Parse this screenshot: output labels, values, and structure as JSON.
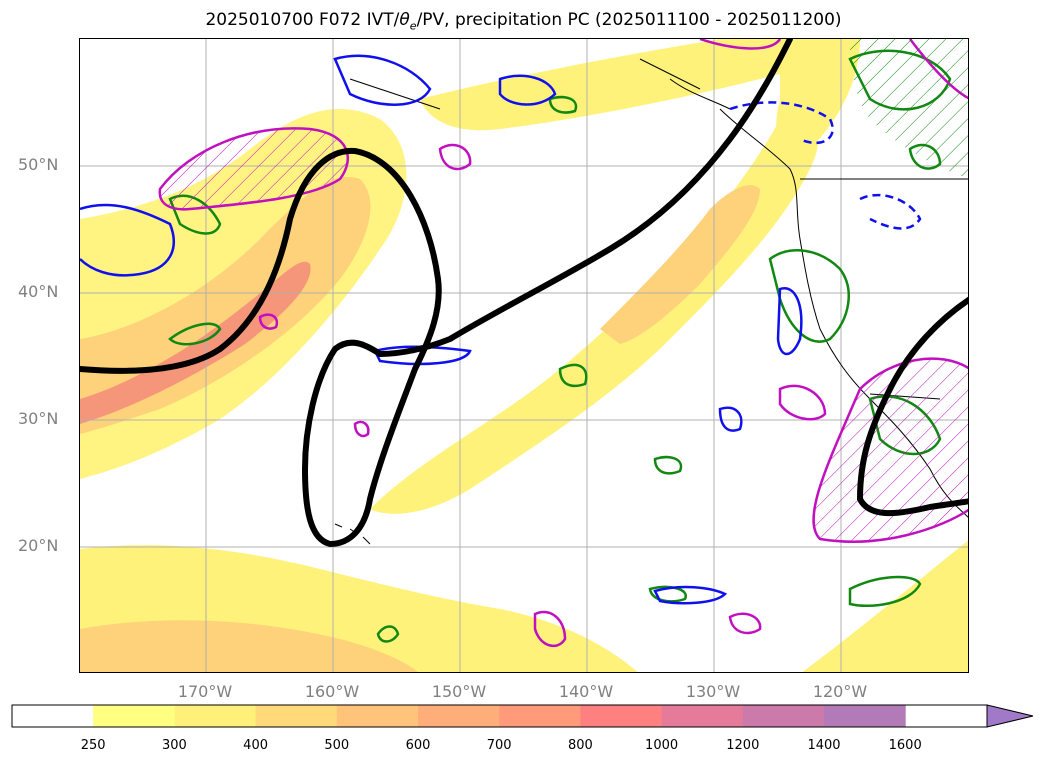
{
  "title": {
    "prefix": "2025010700 F072 IVT/",
    "theta": "θ",
    "theta_sub": "e",
    "suffix": "/PV, precipitation PC (2025011100 - 2025011200)"
  },
  "map": {
    "lat_labels": [
      "50°N",
      "40°N",
      "30°N",
      "20°N"
    ],
    "lon_labels": [
      "170°W",
      "160°W",
      "150°W",
      "140°W",
      "130°W",
      "120°W"
    ],
    "colors": {
      "ivt_low": "#fffa7a",
      "ivt_mid": "#fee08b",
      "ivt_high": "#f9a46a",
      "ivt_core": "#f28a7b",
      "pv_contour": "#000000",
      "precip_green": "#118811",
      "precip_blue": "#1010ee",
      "precip_magenta": "#c010c0",
      "coastline": "#000000",
      "gridline": "#b0b0b0"
    }
  },
  "colorbar": {
    "levels": [
      "250",
      "300",
      "400",
      "500",
      "600",
      "700",
      "800",
      "1000",
      "1200",
      "1400",
      "1600"
    ],
    "colors": [
      "#ffffff",
      "#ffff80",
      "#fff07a",
      "#ffd97a",
      "#ffc47a",
      "#ffae7a",
      "#ff9a7a",
      "#ff8080",
      "#e57a9a",
      "#cc7aaa",
      "#b37ab8",
      "#a07ac8"
    ]
  }
}
